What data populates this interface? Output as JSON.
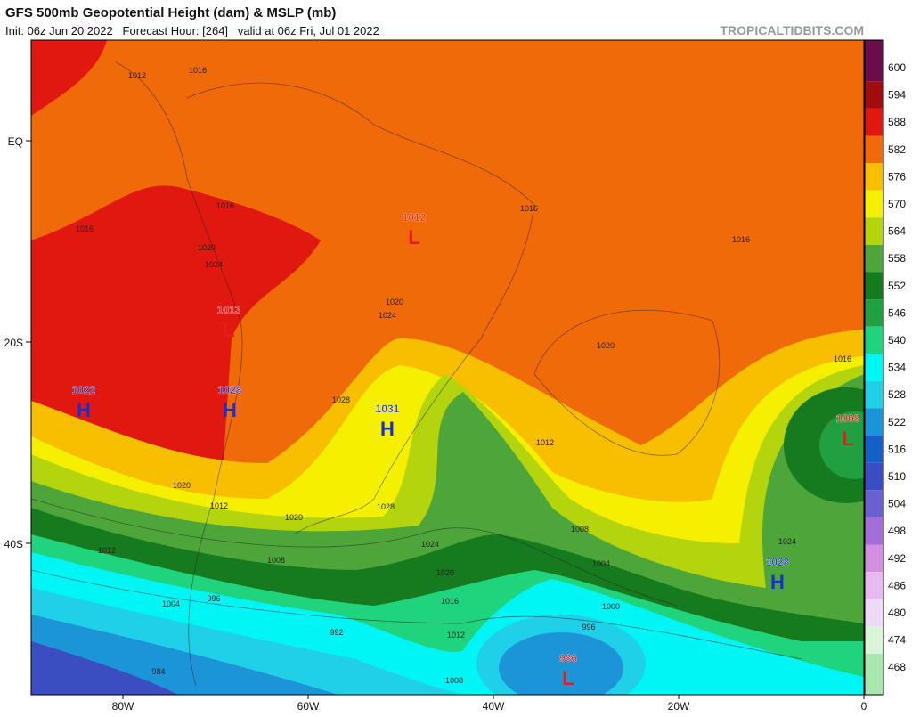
{
  "header": {
    "title": "GFS 500mb Geopotential Height (dam) & MSLP (mb)",
    "subtitle": "Init: 06z Jun 20 2022   Forecast Hour: [264]   valid at 06z Fri, Jul 01 2022",
    "credit": "TROPICALTIDBITS.COM"
  },
  "axes": {
    "lat_labels": [
      "EQ",
      "20S",
      "40S"
    ],
    "lon_labels": [
      "80W",
      "60W",
      "40W",
      "20W",
      "0"
    ]
  },
  "colorbar": {
    "values": [
      600,
      594,
      588,
      582,
      576,
      570,
      564,
      558,
      552,
      546,
      540,
      534,
      528,
      522,
      516,
      510,
      504,
      498,
      492,
      486,
      480,
      474,
      468
    ],
    "colors": [
      "#6a0d4a",
      "#a00d0d",
      "#e0180f",
      "#f06a0a",
      "#f8bf00",
      "#f5f000",
      "#b4d40e",
      "#4ea53a",
      "#167a1e",
      "#20a040",
      "#1fd47c",
      "#00f5f5",
      "#20d0e8",
      "#1b95d8",
      "#1560c8",
      "#3a4ec2",
      "#6c60d0",
      "#a46ed8",
      "#d490e0",
      "#e8b8f0",
      "#f0d8f8",
      "#d8f5d8",
      "#a8e8b0"
    ]
  },
  "centers": [
    {
      "value": 1022,
      "letter": "H"
    },
    {
      "value": 1028,
      "letter": "H"
    },
    {
      "value": 1031,
      "letter": "H"
    },
    {
      "value": 1012,
      "letter": "L"
    },
    {
      "value": 1013,
      "letter": "L"
    },
    {
      "value": 1028,
      "letter": "H"
    },
    {
      "value": 1008,
      "letter": "L"
    },
    {
      "value": 986,
      "letter": "L"
    }
  ],
  "isobar_labels": [
    1012,
    1016,
    1016,
    1016,
    1016,
    1016,
    1020,
    1024,
    1020,
    1024,
    1028,
    1020,
    1020,
    1012,
    1020,
    1028,
    1024,
    1020,
    1016,
    1012,
    1008,
    1004,
    1000,
    996,
    992,
    1008,
    1012,
    1024,
    1016,
    1012,
    1004,
    1008,
    996,
    984
  ]
}
